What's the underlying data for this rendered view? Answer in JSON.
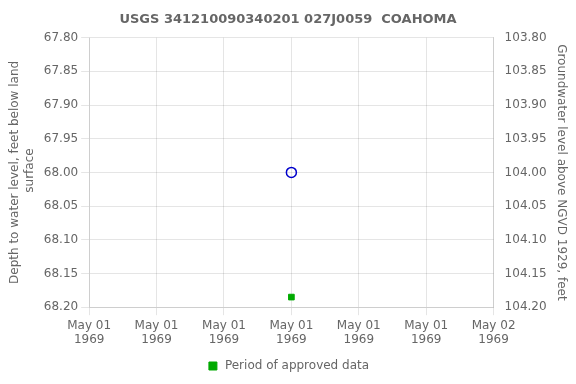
{
  "chart_data": {
    "type": "scatter",
    "title": "USGS 341210090340201 027J0059  COAHOMA",
    "y_label": "Depth to water level, feet below land\n surface",
    "y2_label": "Groundwater level above NGVD 1929, feet",
    "xlim": [
      0,
      24
    ],
    "xticks": [
      {
        "value": 0,
        "label": "May 01\n1969"
      },
      {
        "value": 4,
        "label": "May 01\n1969"
      },
      {
        "value": 8,
        "label": "May 01\n1969"
      },
      {
        "value": 12,
        "label": "May 01\n1969"
      },
      {
        "value": 16,
        "label": "May 01\n1969"
      },
      {
        "value": 20,
        "label": "May 01\n1969"
      },
      {
        "value": 24,
        "label": "May 02\n1969"
      }
    ],
    "ylim": [
      68.2,
      67.8
    ],
    "yticks": [
      {
        "value": 67.8,
        "label": "67.80"
      },
      {
        "value": 67.85,
        "label": "67.85"
      },
      {
        "value": 67.9,
        "label": "67.90"
      },
      {
        "value": 67.95,
        "label": "67.95"
      },
      {
        "value": 68.0,
        "label": "68.00"
      },
      {
        "value": 68.05,
        "label": "68.05"
      },
      {
        "value": 68.1,
        "label": "68.10"
      },
      {
        "value": 68.15,
        "label": "68.15"
      },
      {
        "value": 68.2,
        "label": "68.20"
      }
    ],
    "y2lim": [
      104.2,
      103.8
    ],
    "y2ticks": [
      {
        "value": 104.2,
        "label": "104.20"
      },
      {
        "value": 104.15,
        "label": "104.15"
      },
      {
        "value": 104.1,
        "label": "104.10"
      },
      {
        "value": 104.05,
        "label": "104.05"
      },
      {
        "value": 104.0,
        "label": "104.00"
      },
      {
        "value": 103.95,
        "label": "103.95"
      },
      {
        "value": 103.9,
        "label": "103.90"
      },
      {
        "value": 103.85,
        "label": "103.85"
      },
      {
        "value": 103.8,
        "label": "103.80"
      }
    ],
    "series": [
      {
        "x": [
          12
        ],
        "values": [
          68.0
        ],
        "color": "#0000cc",
        "marker": "open_circle"
      },
      {
        "name": "Period of approved data",
        "x": [
          12
        ],
        "values": [
          68.185
        ],
        "color": "#00aa00",
        "marker": "square"
      }
    ],
    "grid": true,
    "legend": "bottom"
  }
}
